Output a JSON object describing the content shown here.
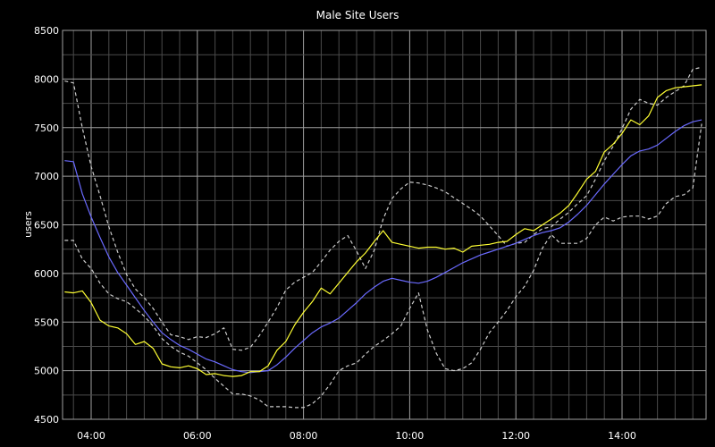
{
  "chart_data": {
    "type": "line",
    "title": "Male Site Users",
    "xlabel": "",
    "ylabel": "users",
    "x_tick_labels": [
      "04:00",
      "06:00",
      "08:00",
      "10:00",
      "12:00",
      "14:00"
    ],
    "y_ticks": [
      4500,
      5000,
      5500,
      6000,
      6500,
      7000,
      7500,
      8000,
      8500
    ],
    "ylim": [
      4500,
      8500
    ],
    "grid": true,
    "colors": {
      "background": "#000000",
      "grid_major": "#a0a0a0",
      "grid_minor": "#4a4a4a",
      "text": "#ffffff",
      "actual": "#ffff33",
      "forecast": "#6a6aff",
      "bounds": "#cccccc"
    },
    "series": [
      {
        "key": "actual",
        "style": "solid",
        "x": [
          "03:30",
          "03:40",
          "03:50",
          "04:00",
          "04:10",
          "04:20",
          "04:30",
          "04:40",
          "04:50",
          "05:00",
          "05:10",
          "05:20",
          "05:30",
          "05:40",
          "05:50",
          "06:00",
          "06:10",
          "06:20",
          "06:30",
          "06:40",
          "06:50",
          "07:00",
          "07:10",
          "07:20",
          "07:30",
          "07:40",
          "07:50",
          "08:00",
          "08:10",
          "08:20",
          "08:30",
          "08:40",
          "08:50",
          "09:00",
          "09:10",
          "09:20",
          "09:30",
          "09:40",
          "09:50",
          "10:00",
          "10:10",
          "10:20",
          "10:30",
          "10:40",
          "10:50",
          "11:00",
          "11:10",
          "11:20",
          "11:30",
          "11:40",
          "11:50",
          "12:00",
          "12:10",
          "12:20",
          "12:30",
          "12:40",
          "12:50",
          "13:00",
          "13:10",
          "13:20",
          "13:30",
          "13:40",
          "13:50",
          "14:00",
          "14:10",
          "14:20",
          "14:30",
          "14:40",
          "14:50",
          "15:00",
          "15:10",
          "15:20",
          "15:30"
        ],
        "values": [
          5810,
          5800,
          5820,
          5700,
          5520,
          5460,
          5440,
          5380,
          5270,
          5300,
          5230,
          5070,
          5040,
          5030,
          5050,
          5020,
          4960,
          4970,
          4950,
          4940,
          4950,
          4990,
          4990,
          5050,
          5210,
          5300,
          5470,
          5600,
          5710,
          5850,
          5790,
          5900,
          6010,
          6120,
          6210,
          6330,
          6440,
          6320,
          6300,
          6280,
          6260,
          6270,
          6270,
          6250,
          6260,
          6220,
          6280,
          6290,
          6300,
          6320,
          6330,
          6400,
          6460,
          6440,
          6500,
          6560,
          6620,
          6700,
          6830,
          6970,
          7050,
          7250,
          7330,
          7440,
          7580,
          7530,
          7620,
          7810,
          7880,
          7910,
          7920,
          7930,
          7940
        ]
      },
      {
        "key": "forecast",
        "style": "solid",
        "x": [
          "03:30",
          "03:40",
          "03:50",
          "04:00",
          "04:10",
          "04:20",
          "04:30",
          "04:40",
          "04:50",
          "05:00",
          "05:10",
          "05:20",
          "05:30",
          "05:40",
          "05:50",
          "06:00",
          "06:10",
          "06:20",
          "06:30",
          "06:40",
          "06:50",
          "07:00",
          "07:10",
          "07:20",
          "07:30",
          "07:40",
          "07:50",
          "08:00",
          "08:10",
          "08:20",
          "08:30",
          "08:40",
          "08:50",
          "09:00",
          "09:10",
          "09:20",
          "09:30",
          "09:40",
          "09:50",
          "10:00",
          "10:10",
          "10:20",
          "10:30",
          "10:40",
          "10:50",
          "11:00",
          "11:10",
          "11:20",
          "11:30",
          "11:40",
          "11:50",
          "12:00",
          "12:10",
          "12:20",
          "12:30",
          "12:40",
          "12:50",
          "13:00",
          "13:10",
          "13:20",
          "13:30",
          "13:40",
          "13:50",
          "14:00",
          "14:10",
          "14:20",
          "14:30",
          "14:40",
          "14:50",
          "15:00",
          "15:10",
          "15:20",
          "15:30"
        ],
        "values": [
          7160,
          7150,
          6820,
          6580,
          6370,
          6170,
          6010,
          5880,
          5750,
          5620,
          5500,
          5390,
          5320,
          5260,
          5220,
          5170,
          5120,
          5090,
          5050,
          5010,
          4990,
          4980,
          4990,
          5000,
          5060,
          5140,
          5230,
          5310,
          5390,
          5450,
          5490,
          5540,
          5620,
          5700,
          5790,
          5860,
          5920,
          5950,
          5930,
          5910,
          5900,
          5920,
          5960,
          6010,
          6060,
          6110,
          6150,
          6190,
          6220,
          6250,
          6280,
          6310,
          6350,
          6390,
          6420,
          6440,
          6470,
          6530,
          6610,
          6700,
          6810,
          6920,
          7020,
          7120,
          7210,
          7260,
          7280,
          7320,
          7390,
          7460,
          7520,
          7560,
          7580
        ]
      },
      {
        "key": "upper",
        "style": "dashed",
        "x": [
          "03:30",
          "03:40",
          "03:50",
          "04:00",
          "04:10",
          "04:20",
          "04:30",
          "04:40",
          "04:50",
          "05:00",
          "05:10",
          "05:20",
          "05:30",
          "05:40",
          "05:50",
          "06:00",
          "06:10",
          "06:20",
          "06:30",
          "06:40",
          "06:50",
          "07:00",
          "07:10",
          "07:20",
          "07:30",
          "07:40",
          "07:50",
          "08:00",
          "08:10",
          "08:20",
          "08:30",
          "08:40",
          "08:50",
          "09:00",
          "09:10",
          "09:20",
          "09:30",
          "09:40",
          "09:50",
          "10:00",
          "10:10",
          "10:20",
          "10:30",
          "10:40",
          "10:50",
          "11:00",
          "11:10",
          "11:20",
          "11:30",
          "11:40",
          "11:50",
          "12:00",
          "12:10",
          "12:20",
          "12:30",
          "12:40",
          "12:50",
          "13:00",
          "13:10",
          "13:20",
          "13:30",
          "13:40",
          "13:50",
          "14:00",
          "14:10",
          "14:20",
          "14:30",
          "14:40",
          "14:50",
          "15:00",
          "15:10",
          "15:20",
          "15:30"
        ],
        "values": [
          7980,
          7960,
          7500,
          7100,
          6800,
          6480,
          6220,
          5990,
          5840,
          5750,
          5640,
          5500,
          5370,
          5350,
          5320,
          5350,
          5340,
          5380,
          5440,
          5220,
          5210,
          5240,
          5360,
          5500,
          5650,
          5830,
          5910,
          5960,
          6010,
          6120,
          6240,
          6330,
          6390,
          6230,
          6050,
          6240,
          6560,
          6770,
          6870,
          6940,
          6930,
          6910,
          6880,
          6840,
          6780,
          6720,
          6660,
          6590,
          6490,
          6390,
          6280,
          6310,
          6320,
          6400,
          6460,
          6480,
          6560,
          6630,
          6720,
          6800,
          6970,
          7160,
          7310,
          7490,
          7690,
          7790,
          7750,
          7730,
          7810,
          7870,
          7930,
          8100,
          8120
        ]
      },
      {
        "key": "lower",
        "style": "dashed",
        "x": [
          "03:30",
          "03:40",
          "03:50",
          "04:00",
          "04:10",
          "04:20",
          "04:30",
          "04:40",
          "04:50",
          "05:00",
          "05:10",
          "05:20",
          "05:30",
          "05:40",
          "05:50",
          "06:00",
          "06:10",
          "06:20",
          "06:30",
          "06:40",
          "06:50",
          "07:00",
          "07:10",
          "07:20",
          "07:30",
          "07:40",
          "07:50",
          "08:00",
          "08:10",
          "08:20",
          "08:30",
          "08:40",
          "08:50",
          "09:00",
          "09:10",
          "09:20",
          "09:30",
          "09:40",
          "09:50",
          "10:00",
          "10:10",
          "10:20",
          "10:30",
          "10:40",
          "10:50",
          "11:00",
          "11:10",
          "11:20",
          "11:30",
          "11:40",
          "11:50",
          "12:00",
          "12:10",
          "12:20",
          "12:30",
          "12:40",
          "12:50",
          "13:00",
          "13:10",
          "13:20",
          "13:30",
          "13:40",
          "13:50",
          "14:00",
          "14:10",
          "14:20",
          "14:30",
          "14:40",
          "14:50",
          "15:00",
          "15:10",
          "15:20",
          "15:30"
        ],
        "values": [
          6340,
          6340,
          6150,
          6050,
          5900,
          5790,
          5740,
          5710,
          5640,
          5560,
          5460,
          5330,
          5250,
          5190,
          5150,
          5080,
          5010,
          4920,
          4840,
          4760,
          4760,
          4740,
          4700,
          4630,
          4630,
          4630,
          4620,
          4620,
          4660,
          4740,
          4860,
          5000,
          5050,
          5080,
          5170,
          5250,
          5310,
          5380,
          5460,
          5640,
          5800,
          5420,
          5180,
          5020,
          5000,
          5020,
          5080,
          5220,
          5390,
          5500,
          5620,
          5760,
          5870,
          6030,
          6260,
          6400,
          6310,
          6310,
          6310,
          6360,
          6500,
          6580,
          6540,
          6580,
          6590,
          6590,
          6560,
          6590,
          6720,
          6790,
          6810,
          6880,
          7540
        ]
      }
    ]
  }
}
